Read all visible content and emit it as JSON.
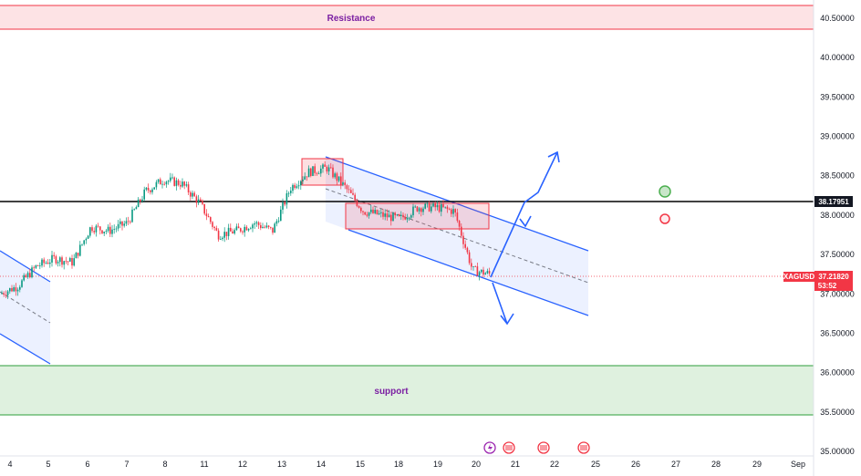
{
  "chart_data": {
    "type": "candlestick",
    "symbol": "XAGUSD",
    "last_price": "37.21820",
    "countdown": "53:52",
    "marked_level": "38.17951",
    "ylim": [
      35.0,
      40.65
    ],
    "y_ticks": [
      "40.50000",
      "40.00000",
      "39.50000",
      "39.00000",
      "38.50000",
      "38.00000",
      "37.50000",
      "37.00000",
      "36.50000",
      "36.00000",
      "35.50000",
      "35.00000"
    ],
    "y_tick_values": [
      40.5,
      40.0,
      39.5,
      39.0,
      38.5,
      38.0,
      37.5,
      37.0,
      36.5,
      36.0,
      35.5,
      35.0
    ],
    "x_ticks": [
      "4",
      "5",
      "6",
      "7",
      "8",
      "11",
      "12",
      "13",
      "14",
      "15",
      "18",
      "19",
      "20",
      "21",
      "22",
      "25",
      "26",
      "27",
      "28",
      "29",
      "Sep"
    ],
    "resistance": {
      "label": "Resistance",
      "low": 40.35,
      "high": 40.67
    },
    "support": {
      "label": "support",
      "low": 35.48,
      "high": 36.1
    },
    "price_path": [
      [
        0,
        37.0
      ],
      [
        0.5,
        37.1
      ],
      [
        1,
        37.35
      ],
      [
        1.5,
        37.45
      ],
      [
        2,
        37.4
      ],
      [
        2.5,
        37.85
      ],
      [
        3,
        37.8
      ],
      [
        3.5,
        37.9
      ],
      [
        4,
        38.3
      ],
      [
        4.5,
        38.45
      ],
      [
        5,
        38.4
      ],
      [
        5.5,
        38.15
      ],
      [
        6,
        37.75
      ],
      [
        6.5,
        37.8
      ],
      [
        7,
        37.9
      ],
      [
        7.5,
        37.8
      ],
      [
        8,
        38.35
      ],
      [
        8.5,
        38.55
      ],
      [
        9,
        38.6
      ],
      [
        9.5,
        38.35
      ],
      [
        10,
        38.05
      ],
      [
        10.5,
        38.0
      ],
      [
        11,
        37.95
      ],
      [
        11.5,
        38.1
      ],
      [
        12,
        38.1
      ],
      [
        12.5,
        38.05
      ],
      [
        13,
        37.3
      ],
      [
        13.5,
        37.25
      ]
    ]
  },
  "events": [
    "lightning-event",
    "us-event",
    "us-event",
    "us-event"
  ],
  "colors": {
    "up": "#089981",
    "down": "#f23645",
    "channel": "#2962ff",
    "resistance_line": "#f23645",
    "support_line": "#2e9e3b",
    "signal_green": "#4caf50",
    "signal_red": "#f23645"
  }
}
